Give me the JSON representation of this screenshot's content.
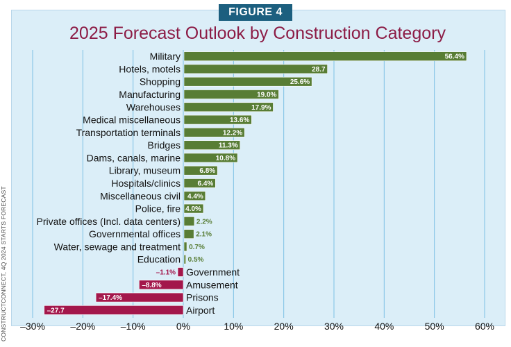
{
  "figure_label": "FIGURE 4",
  "source_note": "CONSTRUCTCONNECT, 4Q 2024 STARTS FORECAST",
  "colors": {
    "positive": "#587d35",
    "negative": "#a3174b",
    "title": "#8c1c46",
    "badge": "#1c5f7f",
    "background": "#dbeef8",
    "grid": "#7cc0e4"
  },
  "chart_data": {
    "type": "bar",
    "orientation": "horizontal",
    "title": "2025 Forecast Outlook by Construction Category",
    "xlim": [
      -30,
      60
    ],
    "xticks": [
      -30,
      -20,
      -10,
      0,
      10,
      20,
      30,
      40,
      50,
      60
    ],
    "tick_labels": [
      "–30%",
      "–20%",
      "–10%",
      "0%",
      "10%",
      "20%",
      "30%",
      "40%",
      "50%",
      "60%"
    ],
    "grid": true,
    "categories": [
      "Military",
      "Hotels, motels",
      "Shopping",
      "Manufacturing",
      "Warehouses",
      "Medical miscellaneous",
      "Transportation terminals",
      "Bridges",
      "Dams, canals, marine",
      "Library, museum",
      "Hospitals/clinics",
      "Miscellaneous civil",
      "Police, fire",
      "Private offices (Incl. data centers)",
      "Governmental offices",
      "Water, sewage and treatment",
      "Education",
      "Government",
      "Amusement",
      "Prisons",
      "Airport"
    ],
    "values": [
      56.4,
      28.7,
      25.6,
      19.0,
      17.9,
      13.6,
      12.2,
      11.3,
      10.8,
      6.8,
      6.4,
      4.4,
      4.0,
      2.2,
      2.1,
      0.7,
      0.5,
      -1.1,
      -8.8,
      -17.4,
      -27.7
    ],
    "data_labels": [
      "56.4%",
      "28.7",
      "25.6%",
      "19.0%",
      "17.9%",
      "13.6%",
      "12.2%",
      "11.3%",
      "10.8%",
      "6.8%",
      "6.4%",
      "4.4%",
      "4.0%",
      "2.2%",
      "2.1%",
      "0.7%",
      "0.5%",
      "–1.1%",
      "–8.8%",
      "–17.4%",
      "–27.7"
    ]
  }
}
